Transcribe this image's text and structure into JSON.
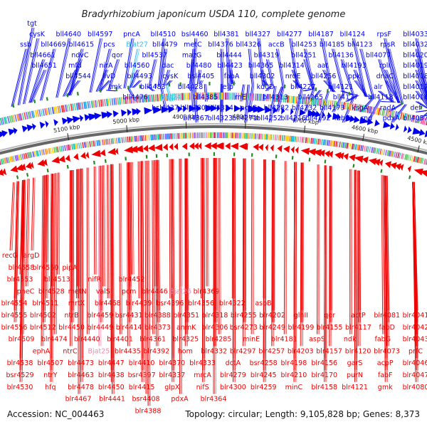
{
  "title": "Bradyrhizobium japonicum USDA 110, complete genome",
  "footer": {
    "accession": "Accession: NC_004463",
    "summary": "Topology: circular; Length: 9,105,828 bp; Genes: 8,373"
  },
  "colors": {
    "forward": "#0000ee",
    "reverse": "#ee0000",
    "rna": "#33bbee",
    "rna_reverse": "#ee88aa",
    "backbone": "#666666",
    "tick": "#228b22"
  },
  "scale": [
    "5100 kbp",
    "5000 kbp",
    "4900 kbp",
    "4800 kbp",
    "4700 kbp",
    "4600 kbp",
    "4500 kbp"
  ],
  "top_rows": [
    [
      "tgt"
    ],
    [
      "cysK",
      "bll4640",
      "bll4597",
      "pncA",
      "bll4510",
      "bsl4460",
      "bll4381",
      "bll4327",
      "bll4277",
      "bll4187",
      "bll4124",
      "rpsF",
      "bll4033"
    ],
    [
      "ssb",
      "bll4669",
      "bll4615",
      "pcs",
      "Bjat27",
      "bll4479",
      "metC",
      "bll4376",
      "bll4326",
      "accB",
      "bll4253",
      "bll4185",
      "bll4123",
      "rpsR",
      "bll4032"
    ],
    [
      "bll4661",
      "ndvC",
      "qor",
      "bll4537",
      "mazG",
      "bll4444",
      "bll4319",
      "bll4251",
      "bll4136",
      "bll4077",
      "bll4020"
    ],
    [
      "bll4651",
      "mfd",
      "nirA",
      "bll4560",
      "dac",
      "bll4480",
      "bll4423",
      "bll4365",
      "bll4314",
      "aat",
      "bll4193",
      "rplI",
      "bll4019"
    ],
    [
      "bll4544",
      "ilvD",
      "bll4493",
      "cysK",
      "bsl4405",
      "fabA",
      "bll4302",
      "nrdE",
      "bll4256",
      "ppk",
      "dnaC",
      "bll4018"
    ],
    [
      "tmk",
      "bll4483",
      "bll4428",
      "efp",
      "kduD",
      "bll4227",
      "bll4121",
      "alr",
      "bll4017"
    ],
    [
      "bll4476",
      "Bjat24",
      "bll4385",
      "rnE",
      "bll4313",
      "bll4265",
      "bll4177",
      "bll4118",
      "bll4016"
    ],
    [
      "bsl4437",
      "bll4380",
      "bll4324",
      "accC",
      "bll4282",
      "bll4232",
      "bll4173",
      "ksgA",
      "radA",
      "def"
    ],
    [
      "bll4367",
      "bll4323",
      "bll4271",
      "bll4252",
      "bll4216",
      "bll4192",
      "fabG",
      "rnd",
      "pdxA",
      "bll4057"
    ]
  ],
  "bottom_rows": [
    [
      "recG",
      "argD"
    ],
    [
      "blr4558",
      "blr4550",
      "pipA"
    ],
    [
      "blr4553",
      "blr4513",
      "nifR",
      "blr4452"
    ],
    [
      "pheC",
      "blr4528",
      "metN",
      "valS",
      "pcm",
      "blr4446",
      "Bjat26",
      "blr4369"
    ],
    [
      "blr4554",
      "blr4511",
      "mrtX",
      "blr4468",
      "blr4439",
      "bsr4396",
      "blr4356",
      "blr4322",
      "aspB"
    ],
    [
      "blr4555",
      "blr4502",
      "ntrB",
      "blr4459",
      "bsr4431",
      "blr4388",
      "blr4351",
      "blr4318",
      "blr4255",
      "blr4202",
      "glnII",
      "qor",
      "actP",
      "blr4081",
      "blr4041"
    ],
    [
      "blr4556",
      "blr4512",
      "blr4450",
      "blr4449",
      "blr4414",
      "blr4373",
      "anmK",
      "blr4306",
      "bsr4273",
      "blr4249",
      "blr4199",
      "blr4155",
      "blr4117",
      "fabD",
      "blr4042"
    ],
    [
      "blr4509",
      "blr4474",
      "blr4440",
      "blr4401",
      "blr4361",
      "blr4325",
      "blr4285",
      "minE",
      "blr4181",
      "aspS",
      "ndk",
      "fabG",
      "blr4043"
    ],
    [
      "ephA",
      "ntrC",
      "Bjat25",
      "blr4435",
      "blr4392",
      "hom",
      "blr4332",
      "blr4297",
      "blr4257",
      "blr4203",
      "blr4157",
      "blr4120",
      "blr4073",
      "prfC"
    ],
    [
      "blr4538",
      "blr4507",
      "blr4473",
      "blr4447",
      "blr4410",
      "blr4370",
      "blr4333",
      "dctA",
      "bsr4258",
      "blr4198",
      "blr4156",
      "garS",
      "acpP",
      "blr4046"
    ],
    [
      "bsr4529",
      "ntrY",
      "blr4463",
      "blr4438",
      "bsr4397",
      "blr4337",
      "mrcA",
      "blr4279",
      "blr4245",
      "blr4210",
      "blr4170",
      "purN",
      "fabF",
      "blr4047"
    ],
    [
      "blr4530",
      "hfq",
      "blr4478",
      "blr4450",
      "blr4415",
      "glpX",
      "nifS",
      "blr4300",
      "blr4259",
      "minC",
      "blr4158",
      "blr4121",
      "gmk",
      "blr4080"
    ],
    [
      "blr4467",
      "blr4441",
      "bsr4408",
      "pdxA",
      "blr4364"
    ],
    [
      "blr4388"
    ]
  ]
}
